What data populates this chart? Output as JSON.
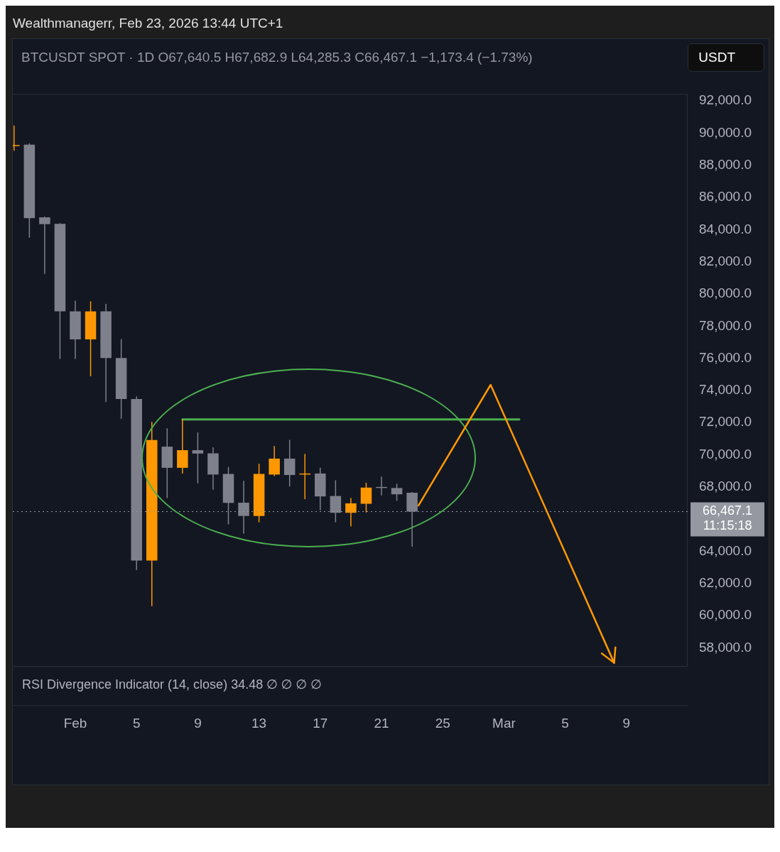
{
  "chart_data": {
    "type": "candlestick",
    "title": "Wealthmanagerr, Feb 23, 2026 13:44 UTC+1",
    "subtitle": "BTCUSDT SPOT · 1D   O67,640.5  H67,682.9  L64,285.3  C66,467.1  −1,173.4 (−1.73%)",
    "ylabel": "USDT",
    "x": [
      "2026-01-28",
      "2026-01-29",
      "2026-01-30",
      "2026-01-31",
      "2026-02-01",
      "2026-02-02",
      "2026-02-03",
      "2026-02-04",
      "2026-02-05",
      "2026-02-06",
      "2026-02-07",
      "2026-02-08",
      "2026-02-09",
      "2026-02-10",
      "2026-02-11",
      "2026-02-12",
      "2026-02-13",
      "2026-02-14",
      "2026-02-15",
      "2026-02-16",
      "2026-02-17",
      "2026-02-18",
      "2026-02-19",
      "2026-02-20",
      "2026-02-21",
      "2026-02-22",
      "2026-02-23"
    ],
    "ohlc": [
      [
        89200,
        90470,
        88900,
        89256
      ],
      [
        89275,
        89370,
        83498,
        84712
      ],
      [
        84760,
        84810,
        81245,
        84340
      ],
      [
        84360,
        84400,
        75957,
        78915
      ],
      [
        78915,
        79580,
        75957,
        77173
      ],
      [
        77173,
        79540,
        74880,
        78915
      ],
      [
        78915,
        79385,
        73274,
        76017
      ],
      [
        76017,
        77192,
        72236,
        73470
      ],
      [
        73470,
        73627,
        62836,
        63422
      ],
      [
        63422,
        72040,
        60583,
        70922
      ],
      [
        70505,
        71641,
        67309,
        69189
      ],
      [
        69189,
        72205,
        68836,
        70286
      ],
      [
        70286,
        71382,
        68221,
        70074
      ],
      [
        70090,
        70466,
        67830,
        68770
      ],
      [
        68809,
        69240,
        65675,
        67007
      ],
      [
        67020,
        68378,
        65088,
        66196
      ],
      [
        66196,
        69436,
        65805,
        68809
      ],
      [
        68770,
        70544,
        68680,
        69761
      ],
      [
        69761,
        70924,
        68026,
        68743
      ],
      [
        68820,
        70051,
        67242,
        68836
      ],
      [
        68836,
        69201,
        66549,
        67410
      ],
      [
        67437,
        68417,
        65805,
        66392
      ],
      [
        66392,
        67309,
        65546,
        66980
      ],
      [
        66953,
        68261,
        66420,
        67959
      ],
      [
        68000,
        68640,
        67477,
        67980
      ],
      [
        67933,
        68194,
        67136,
        67543
      ],
      [
        67640.5,
        67682.9,
        64285.3,
        66467.1
      ]
    ],
    "colors": [
      "#ff9800",
      "#7e818c",
      "#7e818c",
      "#7e818c",
      "#7e818c",
      "#ff9800",
      "#7e818c",
      "#7e818c",
      "#7e818c",
      "#ff9800",
      "#7e818c",
      "#ff9800",
      "#7e818c",
      "#7e818c",
      "#7e818c",
      "#7e818c",
      "#ff9800",
      "#ff9800",
      "#7e818c",
      "#ff9800",
      "#7e818c",
      "#7e818c",
      "#ff9800",
      "#ff9800",
      "#7e818c",
      "#7e818c",
      "#7e818c"
    ],
    "series": [
      {
        "type": "line",
        "color": "#4caf50",
        "x": [
          "2026-02-08",
          "2026-03-02"
        ],
        "values": [
          72200,
          72200
        ]
      }
    ],
    "xlim": [
      "2026-01-27T22:00",
      "2026-03-13"
    ],
    "xticks": [
      {
        "value": "2026-02-01",
        "label": "Feb"
      },
      {
        "value": "2026-02-05",
        "label": "5"
      },
      {
        "value": "2026-02-09",
        "label": "9"
      },
      {
        "value": "2026-02-13",
        "label": "13"
      },
      {
        "value": "2026-02-17",
        "label": "17"
      },
      {
        "value": "2026-02-21",
        "label": "21"
      },
      {
        "value": "2026-02-25",
        "label": "25"
      },
      {
        "value": "2026-03-01",
        "label": "Mar"
      },
      {
        "value": "2026-03-05",
        "label": "5"
      },
      {
        "value": "2026-03-09",
        "label": "9"
      }
    ],
    "ylim": [
      56860,
      92430
    ],
    "yticks": [
      {
        "value": 58000,
        "label": "58,000.0"
      },
      {
        "value": 60000,
        "label": "60,000.0"
      },
      {
        "value": 62000,
        "label": "62,000.0"
      },
      {
        "value": 64000,
        "label": "64,000.0"
      },
      {
        "value": 68000,
        "label": "68,000.0"
      },
      {
        "value": 70000,
        "label": "70,000.0"
      },
      {
        "value": 72000,
        "label": "72,000.0"
      },
      {
        "value": 74000,
        "label": "74,000.0"
      },
      {
        "value": 76000,
        "label": "76,000.0"
      },
      {
        "value": 78000,
        "label": "78,000.0"
      },
      {
        "value": 80000,
        "label": "80,000.0"
      },
      {
        "value": 82000,
        "label": "82,000.0"
      },
      {
        "value": 84000,
        "label": "84,000.0"
      },
      {
        "value": 86000,
        "label": "86,000.0"
      },
      {
        "value": 88000,
        "label": "88,000.0"
      },
      {
        "value": 90000,
        "label": "90,000.0"
      },
      {
        "value": 92000,
        "label": "92,000.0"
      }
    ],
    "ref_lines": [
      {
        "axis": "y",
        "value": 66467.1,
        "label": "66,467.1\n11:15:18",
        "color": "#9598a1",
        "line_style": "dotted"
      }
    ],
    "annotations": [
      "RSI Divergence Indicator (14, close) 34.48 ∅ ∅ ∅ ∅"
    ],
    "grid": false,
    "legend": false,
    "marker": "none"
  }
}
